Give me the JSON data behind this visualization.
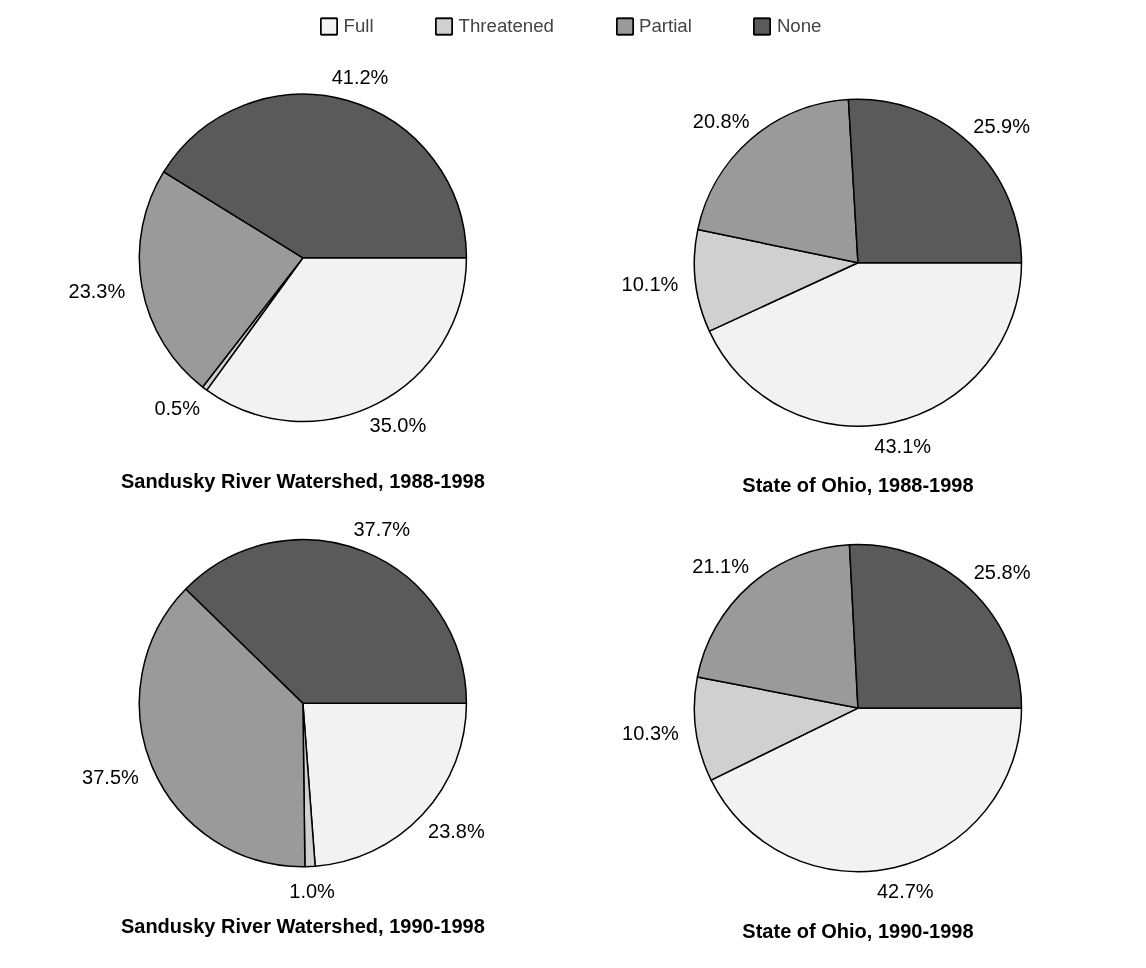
{
  "chart_data": [
    {
      "type": "pie",
      "title": "Sandusky River Watershed, 1988-1998",
      "categories": [
        "Full",
        "Threatened",
        "Partial",
        "None"
      ],
      "values": [
        35.0,
        0.5,
        23.3,
        41.2
      ],
      "value_labels": [
        "35.0%",
        "0.5%",
        "23.3%",
        "41.2%"
      ],
      "colors": [
        "#f2f2f2",
        "#d0d0d0",
        "#9a9a9a",
        "#5a5a5a"
      ],
      "legend": "top"
    },
    {
      "type": "pie",
      "title": "State of Ohio, 1988-1998",
      "categories": [
        null,
        null,
        null,
        null
      ],
      "values": [
        43.1,
        10.1,
        20.8,
        25.9
      ],
      "value_labels": [
        "43.1%",
        "10.1%",
        "20.8%",
        "25.9%"
      ],
      "colors": [
        "#f2f2f2",
        "#d0d0d0",
        "#9a9a9a",
        "#5a5a5a"
      ]
    },
    {
      "type": "pie",
      "title": "Sandusky River Watershed, 1990-1998",
      "categories": [
        null,
        null,
        null,
        null
      ],
      "values": [
        23.8,
        1.0,
        37.5,
        37.7
      ],
      "value_labels": [
        "23.8%",
        "1.0%",
        "37.5%",
        "37.7%"
      ],
      "colors": [
        "#f2f2f2",
        "#d0d0d0",
        "#9a9a9a",
        "#5a5a5a"
      ]
    },
    {
      "type": "pie",
      "title": "State of Ohio, 1990-1998",
      "categories": [
        null,
        null,
        null,
        null
      ],
      "values": [
        42.7,
        10.3,
        21.1,
        25.8
      ],
      "value_labels": [
        "42.7%",
        "10.3%",
        "21.1%",
        "25.8%"
      ],
      "colors": [
        "#f2f2f2",
        "#d0d0d0",
        "#9a9a9a",
        "#5a5a5a"
      ]
    }
  ]
}
